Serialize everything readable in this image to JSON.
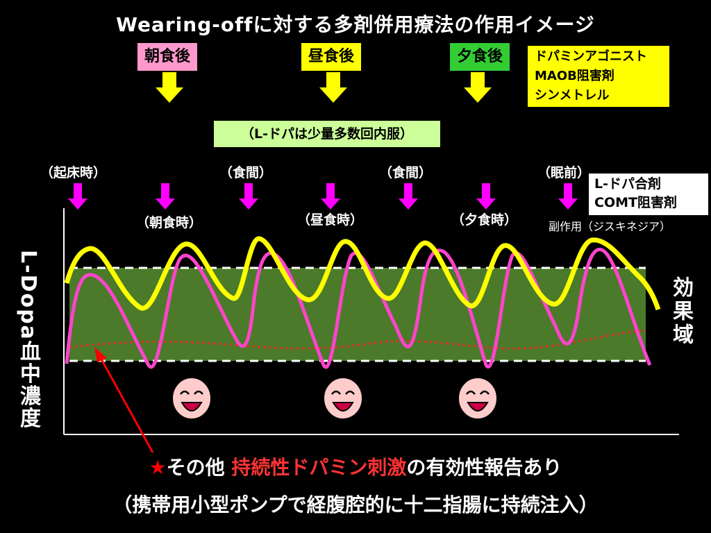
{
  "title": "Wearing-offに対する多剤併用療法の作用イメージ",
  "meals": [
    {
      "label": "朝食後",
      "color": "#ff99cc"
    },
    {
      "label": "昼食後",
      "color": "#ffff00"
    },
    {
      "label": "夕食後",
      "color": "#33cc33"
    }
  ],
  "drug_box": {
    "lines": [
      "ドパミンアゴニスト",
      "MAOB阻害剤",
      "シンメトレル"
    ]
  },
  "ldopa_note": "（L-ドパは少量多数回内服）",
  "timing_upper": [
    "（起床時）",
    "（食間）",
    "（食間）",
    "（眠前）"
  ],
  "timing_lower": [
    "（朝食時）",
    "（昼食時）",
    "（夕食時）"
  ],
  "ldopa_box": {
    "lines": [
      "L-ドパ合剤",
      "COMT阻害剤"
    ]
  },
  "side_effect": "副作用（ジスキネジア）",
  "y_axis_label": "L-Dopa血中濃度",
  "effect_range_label": "効果域",
  "bottom_line1": {
    "star": "★",
    "pre": "その他 ",
    "highlight": "持続性ドパミン刺激",
    "post": "の有効性報告あり"
  },
  "bottom_line2": "（携帯用小型ポンプで経腹腔的に十二指腸に持続注入）",
  "colors": {
    "effect_zone": "#4a7a2a",
    "yellow_curve": "#ffff00",
    "magenta_curve": "#ff44cc",
    "red_dotted": "#ff2222",
    "magenta_arrow": "#ff00ff",
    "yellow_arrow": "#ffff00"
  },
  "icons": [
    "smiley-face-icon",
    "smiley-face-icon",
    "smiley-face-icon"
  ]
}
